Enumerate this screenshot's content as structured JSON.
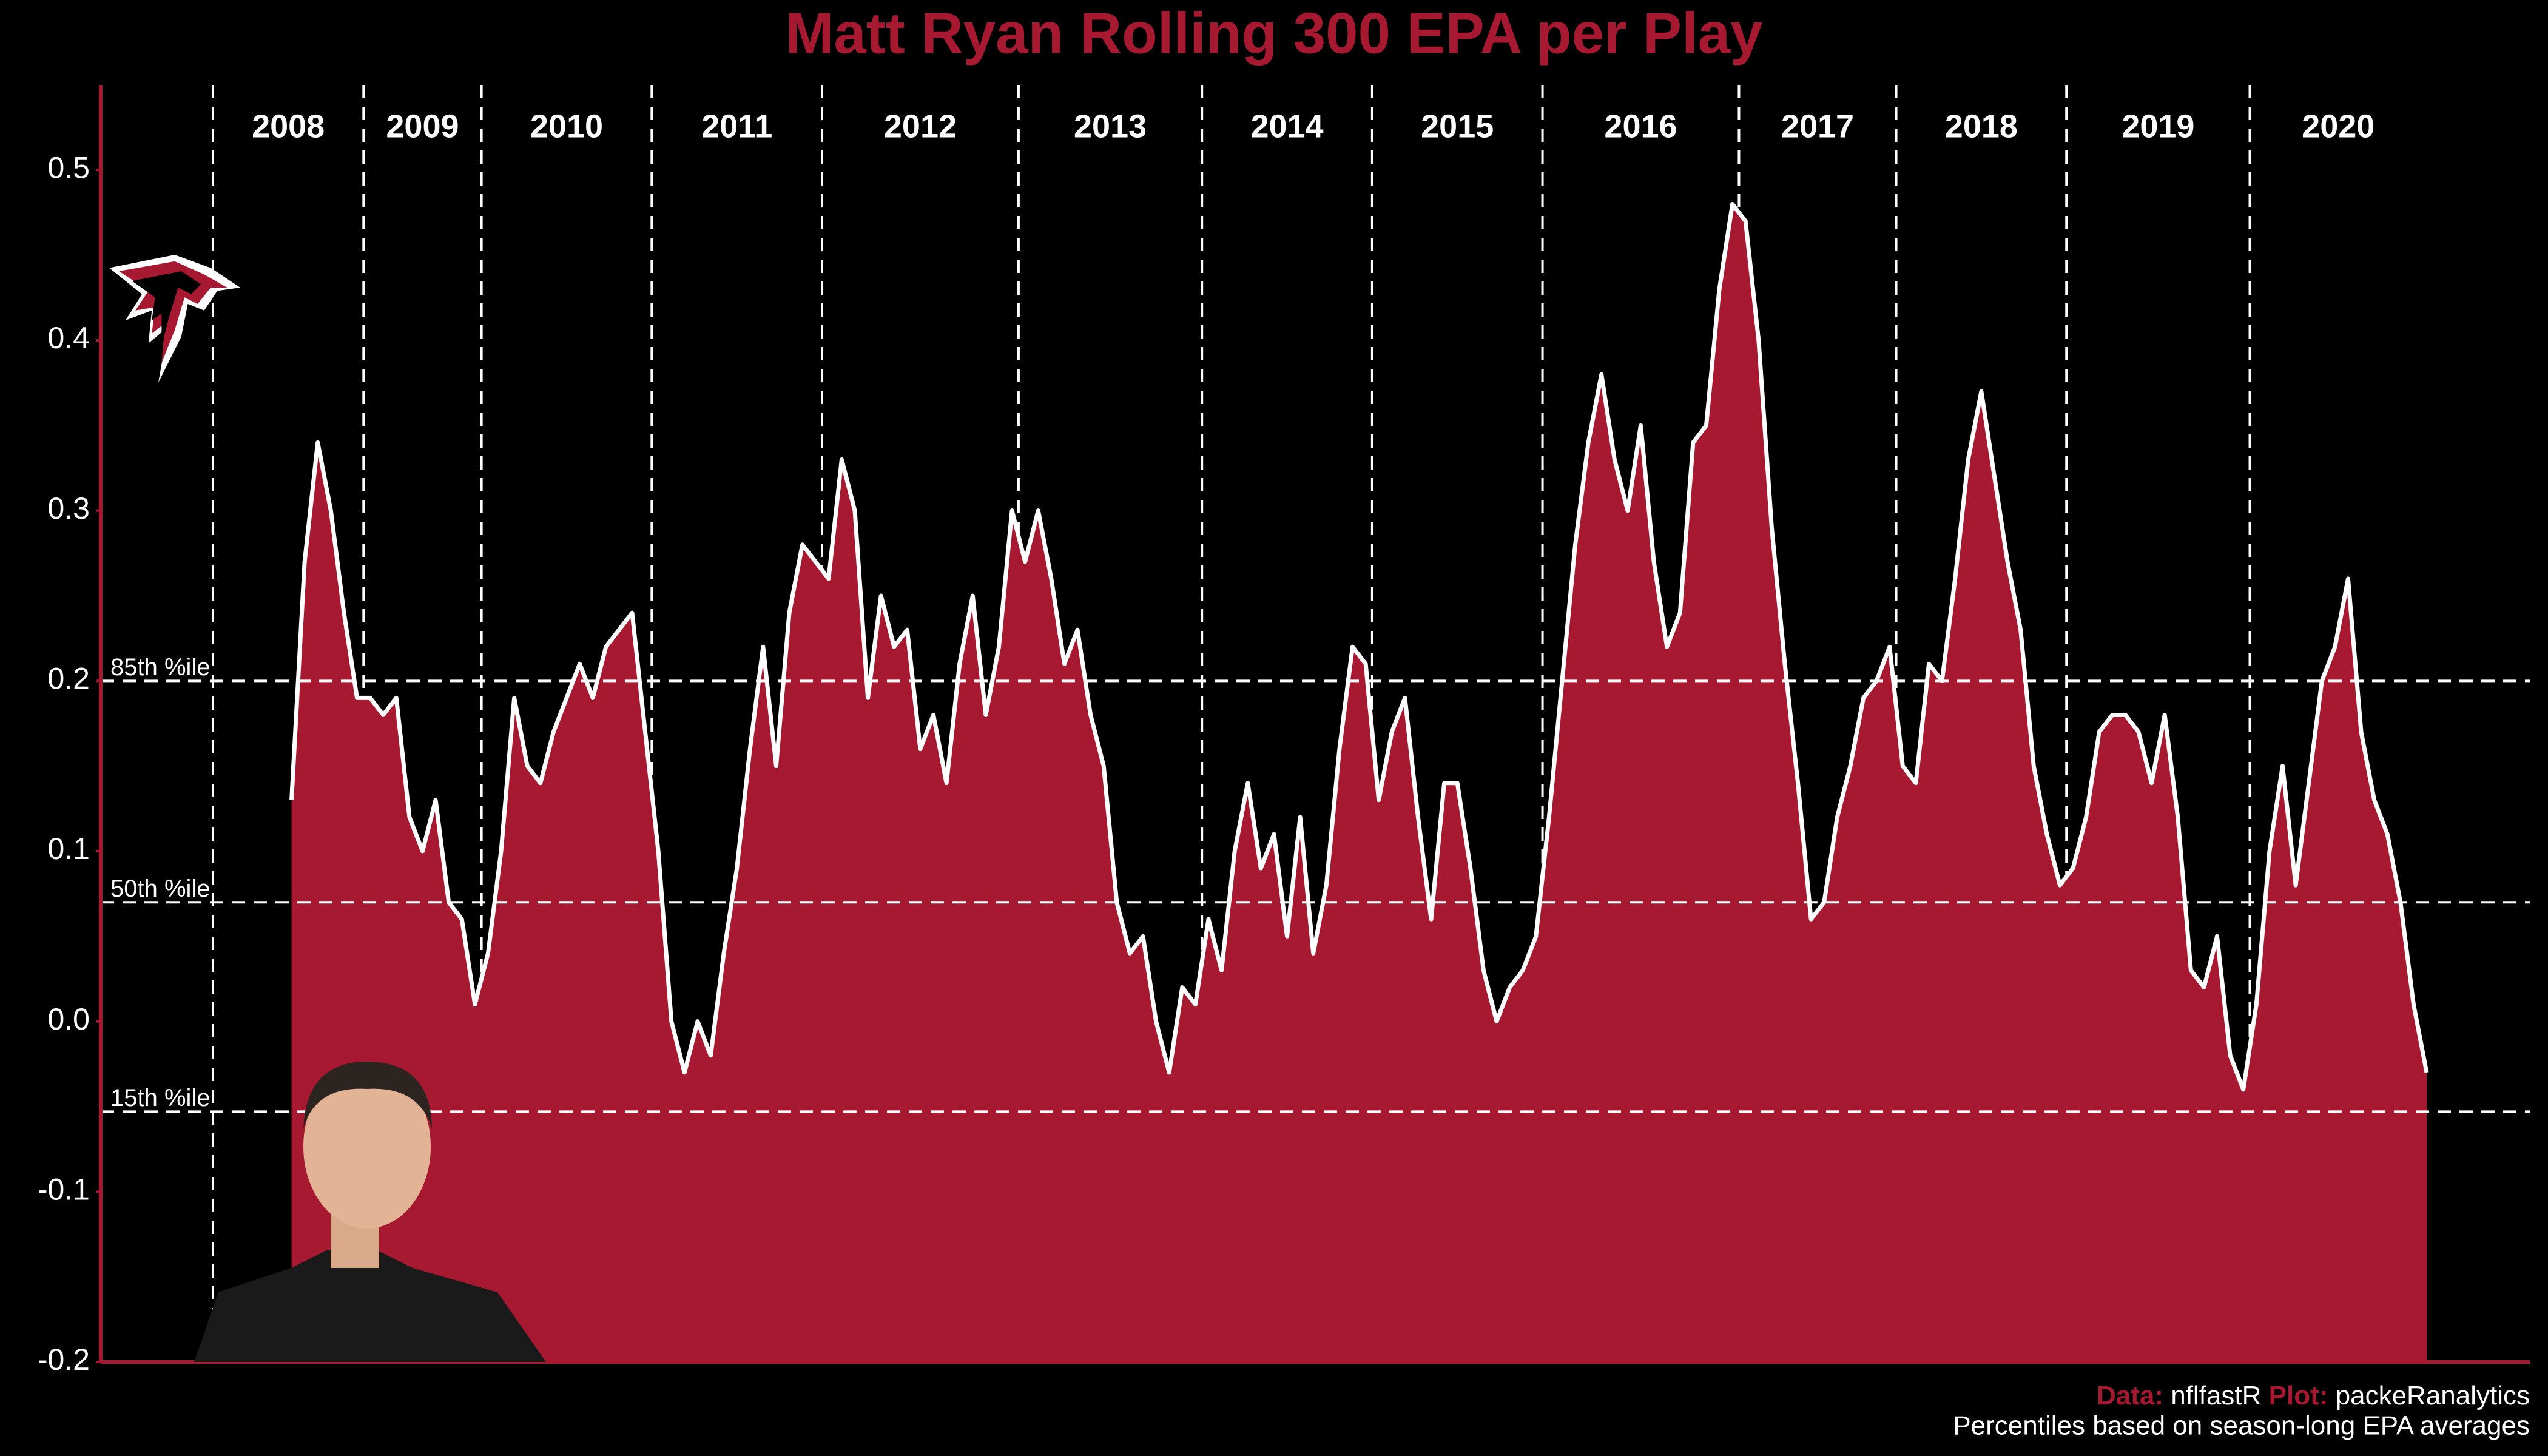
{
  "chart_data": {
    "type": "area",
    "title": "Matt Ryan Rolling 300 EPA per Play",
    "color": "#a71930",
    "line_color": "#ffffff",
    "ylim": [
      -0.2,
      0.55
    ],
    "yticks": [
      0.5,
      0.4,
      0.3,
      0.2,
      0.1,
      {
        "value": 0,
        "label": "0.0"
      },
      -0.1,
      -0.2
    ],
    "reference_lines": [
      {
        "label": "85th %ile",
        "value": 0.2
      },
      {
        "label": "50th %ile",
        "value": 0.07
      },
      {
        "label": "15th %ile",
        "value": -0.053
      }
    ],
    "seasons": [
      {
        "name": "2008",
        "values": [
          null,
          null,
          null,
          null,
          null,
          null,
          0.13,
          0.27,
          0.34,
          0.3,
          0.24,
          0.19
        ]
      },
      {
        "name": "2009",
        "values": [
          0.19,
          0.18,
          0.19,
          0.12,
          0.1,
          0.13,
          0.07,
          0.06,
          0.01
        ]
      },
      {
        "name": "2010",
        "values": [
          0.04,
          0.1,
          0.19,
          0.15,
          0.14,
          0.17,
          0.19,
          0.21,
          0.19,
          0.22,
          0.23,
          0.24,
          0.17
        ]
      },
      {
        "name": "2011",
        "values": [
          0.1,
          0.0,
          -0.03,
          0.0,
          -0.02,
          0.04,
          0.09,
          0.16,
          0.22,
          0.15,
          0.24,
          0.28,
          0.27
        ]
      },
      {
        "name": "2012",
        "values": [
          0.26,
          0.33,
          0.3,
          0.19,
          0.25,
          0.22,
          0.23,
          0.16,
          0.18,
          0.14,
          0.21,
          0.25,
          0.18,
          0.22,
          0.3
        ]
      },
      {
        "name": "2013",
        "values": [
          0.27,
          0.3,
          0.26,
          0.21,
          0.23,
          0.18,
          0.15,
          0.07,
          0.04,
          0.05,
          0.0,
          -0.03,
          0.02,
          0.01
        ]
      },
      {
        "name": "2014",
        "values": [
          0.06,
          0.03,
          0.1,
          0.14,
          0.09,
          0.11,
          0.05,
          0.12,
          0.04,
          0.08,
          0.16,
          0.22,
          0.21
        ]
      },
      {
        "name": "2015",
        "values": [
          0.13,
          0.17,
          0.19,
          0.12,
          0.06,
          0.14,
          0.14,
          0.09,
          0.03,
          0.0,
          0.02,
          0.03,
          0.05
        ]
      },
      {
        "name": "2016",
        "values": [
          0.12,
          0.2,
          0.28,
          0.34,
          0.38,
          0.33,
          0.3,
          0.35,
          0.27,
          0.22,
          0.24,
          0.34,
          0.35,
          0.43,
          0.48
        ]
      },
      {
        "name": "2017",
        "values": [
          0.47,
          0.4,
          0.29,
          0.21,
          0.14,
          0.06,
          0.07,
          0.12,
          0.15,
          0.19,
          0.2,
          0.22
        ]
      },
      {
        "name": "2018",
        "values": [
          0.15,
          0.14,
          0.21,
          0.2,
          0.26,
          0.33,
          0.37,
          0.32,
          0.27,
          0.23,
          0.15,
          0.11,
          0.08
        ]
      },
      {
        "name": "2019",
        "values": [
          0.09,
          0.12,
          0.17,
          0.18,
          0.18,
          0.17,
          0.14,
          0.18,
          0.12,
          0.03,
          0.02,
          0.05,
          -0.02,
          -0.04
        ]
      },
      {
        "name": "2020",
        "values": [
          0.01,
          0.1,
          0.15,
          0.08,
          0.14,
          0.2,
          0.22,
          0.26,
          0.17,
          0.13,
          0.11,
          0.07,
          0.01,
          -0.03
        ]
      }
    ],
    "caption": {
      "data_label": "Data:",
      "data_source": "nflfastR",
      "plot_label": "Plot:",
      "plot_author": "packeRanalytics",
      "note": "Percentiles based on season-long EPA averages"
    }
  }
}
